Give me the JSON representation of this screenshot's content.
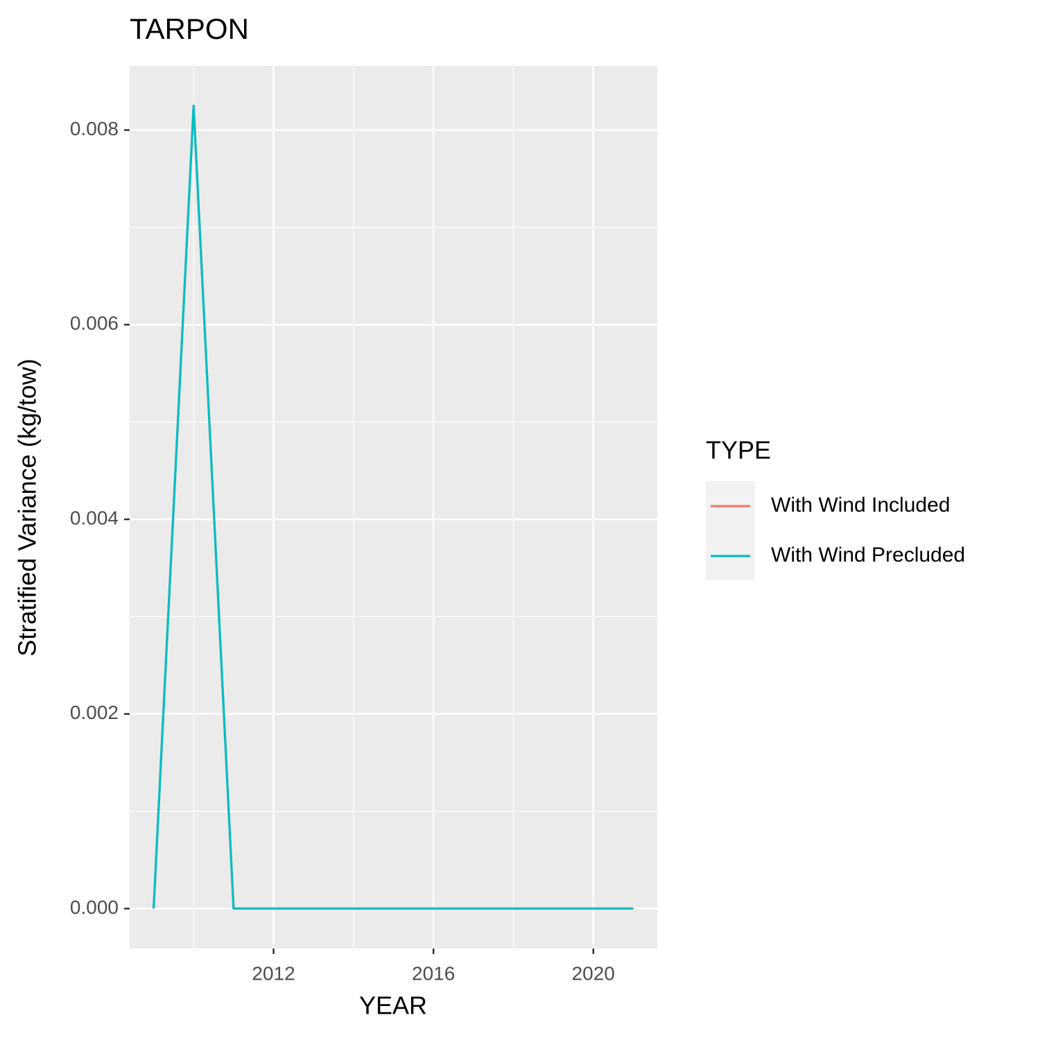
{
  "chart_data": {
    "type": "line",
    "title": "TARPON",
    "x_label": "YEAR",
    "y_label": "Stratified Variance (kg/tow)",
    "x": [
      2009,
      2010,
      2011,
      2012,
      2013,
      2014,
      2015,
      2016,
      2017,
      2018,
      2019,
      2020,
      2021
    ],
    "series": [
      {
        "name": "With Wind Included",
        "color": "#F8766D",
        "values": [
          0,
          0.00825,
          0,
          0,
          0,
          0,
          0,
          0,
          0,
          0,
          0,
          0,
          0
        ]
      },
      {
        "name": "With Wind Precluded",
        "color": "#00BFC4",
        "values": [
          0,
          0.00825,
          0,
          0,
          0,
          0,
          0,
          0,
          0,
          0,
          0,
          0,
          0
        ]
      }
    ],
    "xlim": [
      2008.4,
      2021.6
    ],
    "xticks": [
      2012,
      2016,
      2020
    ],
    "ylim": [
      -0.00041,
      0.00866
    ],
    "yticks": [
      {
        "value": 0,
        "label": "0.000"
      },
      {
        "value": 0.002,
        "label": "0.002"
      },
      {
        "value": 0.004,
        "label": "0.004"
      },
      {
        "value": 0.006,
        "label": "0.006"
      },
      {
        "value": 0.008,
        "label": "0.008"
      }
    ],
    "legend_title": "TYPE",
    "legend_position": "right",
    "grid": true
  }
}
